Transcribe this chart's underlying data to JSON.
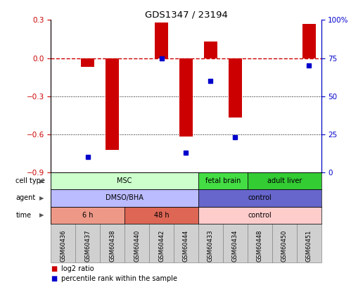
{
  "title": "GDS1347 / 23194",
  "samples": [
    "GSM60436",
    "GSM60437",
    "GSM60438",
    "GSM60440",
    "GSM60442",
    "GSM60444",
    "GSM60433",
    "GSM60434",
    "GSM60448",
    "GSM60450",
    "GSM60451"
  ],
  "log2_ratio": [
    0.0,
    -0.07,
    -0.72,
    0.0,
    0.28,
    -0.62,
    0.13,
    -0.47,
    0.0,
    0.0,
    0.27
  ],
  "percentile_rank": [
    null,
    10,
    null,
    null,
    75,
    13,
    60,
    23,
    null,
    null,
    70
  ],
  "ylim_left": [
    -0.9,
    0.3
  ],
  "ylim_right": [
    0,
    100
  ],
  "bar_color": "#cc0000",
  "dot_color": "#0000cc",
  "zeroline_color": "#cc0000",
  "cell_type_groups": [
    {
      "label": "MSC",
      "start": 0,
      "end": 5,
      "color": "#ccffcc"
    },
    {
      "label": "fetal brain",
      "start": 6,
      "end": 7,
      "color": "#44dd44"
    },
    {
      "label": "adult liver",
      "start": 8,
      "end": 10,
      "color": "#33cc33"
    }
  ],
  "agent_groups": [
    {
      "label": "DMSO/BHA",
      "start": 0,
      "end": 5,
      "color": "#bbbbff"
    },
    {
      "label": "control",
      "start": 6,
      "end": 10,
      "color": "#6666cc"
    }
  ],
  "time_groups": [
    {
      "label": "6 h",
      "start": 0,
      "end": 2,
      "color": "#ee9988"
    },
    {
      "label": "48 h",
      "start": 3,
      "end": 5,
      "color": "#dd6655"
    },
    {
      "label": "control",
      "start": 6,
      "end": 10,
      "color": "#ffcccc"
    }
  ],
  "yticks_left": [
    0.3,
    0.0,
    -0.3,
    -0.6,
    -0.9
  ],
  "yticks_right": [
    100,
    75,
    50,
    25,
    0
  ],
  "legend_items": [
    {
      "label": "log2 ratio",
      "color": "#cc0000"
    },
    {
      "label": "percentile rank within the sample",
      "color": "#0000cc"
    }
  ],
  "bar_width": 0.55,
  "gridline_color": "#000000",
  "sample_box_color": "#d0d0d0",
  "sample_box_edge": "#888888"
}
